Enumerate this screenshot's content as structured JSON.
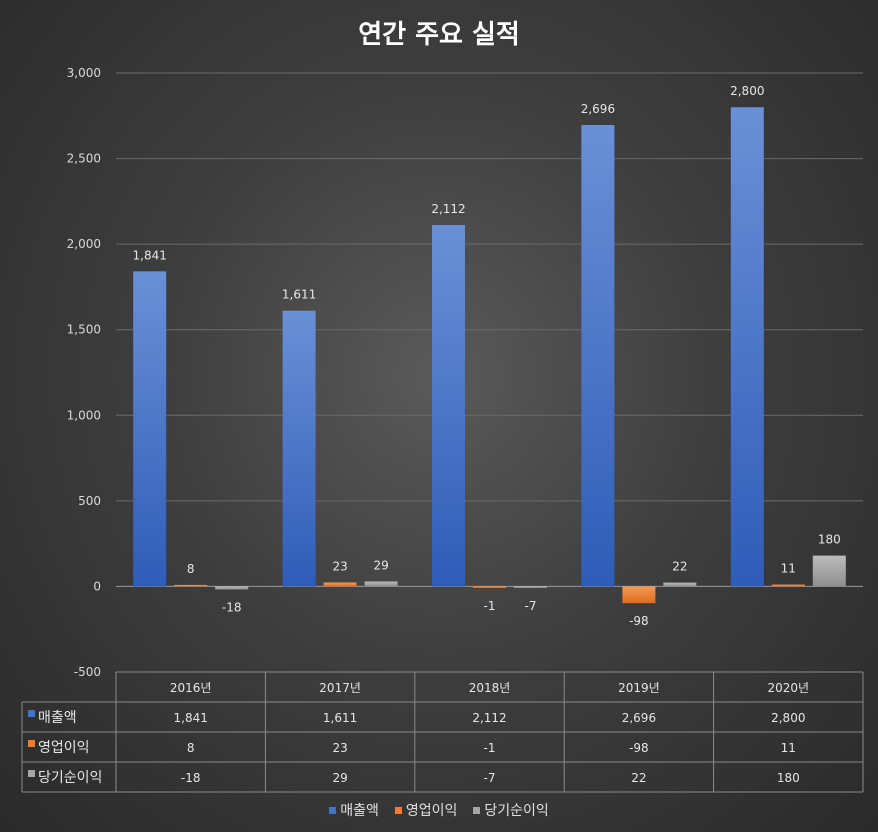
{
  "chart_data": {
    "type": "bar",
    "title": "연간 주요 실적",
    "categories": [
      "2016년",
      "2017년",
      "2018년",
      "2019년",
      "2020년"
    ],
    "series": [
      {
        "name": "매출액",
        "values": [
          1841,
          1611,
          2112,
          2696,
          2800
        ],
        "labels": [
          "1,841",
          "1,611",
          "2,112",
          "2,696",
          "2,800"
        ],
        "color": "#4472c4"
      },
      {
        "name": "영업이익",
        "values": [
          8,
          23,
          -1,
          -98,
          11
        ],
        "labels": [
          "8",
          "23",
          "-1",
          "-98",
          "11"
        ],
        "color": "#ed7d31"
      },
      {
        "name": "당기순이익",
        "values": [
          -18,
          29,
          -7,
          22,
          180
        ],
        "labels": [
          "-18",
          "29",
          "-7",
          "22",
          "180"
        ],
        "color": "#a5a5a5"
      }
    ],
    "ylim": [
      -500,
      3000
    ],
    "yticks": [
      3000,
      2500,
      2000,
      1500,
      1000,
      500,
      0,
      -500
    ],
    "ytick_labels": [
      "3,000",
      "2,500",
      "2,000",
      "1,500",
      "1,000",
      "500",
      "0",
      "-500"
    ],
    "grid": true,
    "legend_position": "bottom",
    "data_table": true
  }
}
